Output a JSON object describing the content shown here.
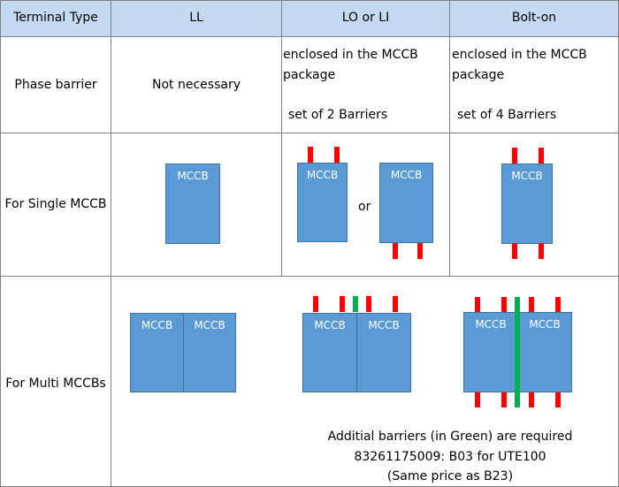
{
  "header": {
    "col1": "Terminal Type",
    "col2": "LL",
    "col3": "LO or LI",
    "col4": "Bolt-on"
  },
  "phase_barrier": {
    "label": "Phase barrier",
    "ll": "Not necessary",
    "lo_li": {
      "line1": "enclosed in the MCCB",
      "line2": "package",
      "line3": "set of 2 Barriers"
    },
    "bolt_on": {
      "line1": "enclosed in the MCCB",
      "line2": "package",
      "line3": "set of 4 Barriers"
    }
  },
  "single": {
    "label": "For Single MCCB",
    "box_label": "MCCB",
    "or_text": "or"
  },
  "multi": {
    "label": "For Multi MCCBs",
    "box_label": "MCCB",
    "note1": "Additial barriers (in Green) are required",
    "note2": "83261175009:  B03 for UTE100",
    "note3": "(Same price as B23)"
  },
  "colors": {
    "header_bg": "#c5d9f1",
    "mccb_fill": "#5b9bd5",
    "barrier_red": "#ff0000",
    "barrier_green": "#00b050"
  }
}
